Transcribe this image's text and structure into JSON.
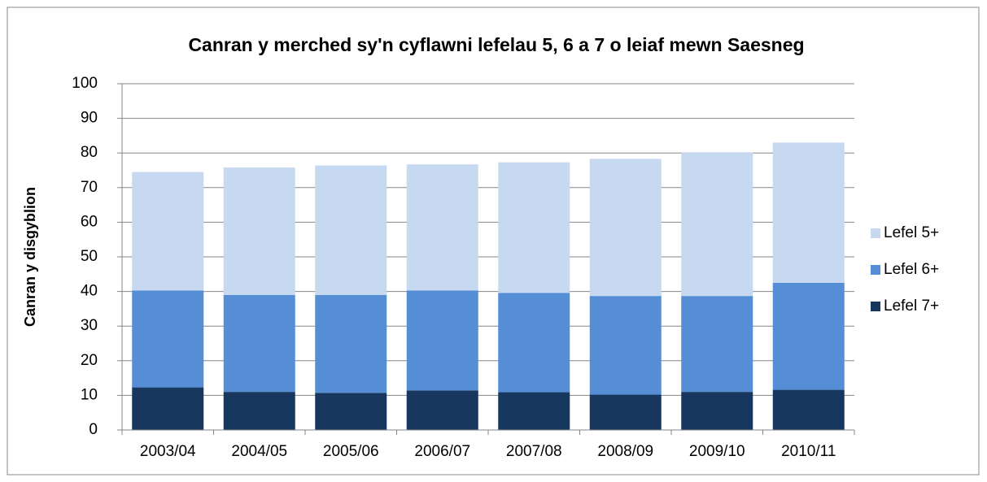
{
  "chart_data": {
    "type": "stacked_bar",
    "title": "Canran y merched sy'n cyflawni lefelau 5,  6 a 7 o leiaf mewn Saesneg",
    "ylabel": "Canran y disgyblion",
    "categories": [
      "2003/04",
      "2004/05",
      "2005/06",
      "2006/07",
      "2007/08",
      "2008/09",
      "2009/10",
      "2010/11"
    ],
    "series": [
      {
        "name": "Lefel 7+",
        "color": "#17375e",
        "values": [
          12.3,
          11.0,
          10.7,
          11.4,
          10.9,
          10.2,
          11.0,
          11.6
        ]
      },
      {
        "name": "Lefel 6+",
        "color": "#558ed5",
        "values": [
          28.0,
          28.0,
          28.3,
          28.9,
          28.7,
          28.5,
          27.7,
          30.9
        ]
      },
      {
        "name": "Lefel 5+",
        "color": "#c6d9f1",
        "values": [
          34.2,
          36.8,
          37.4,
          36.4,
          37.7,
          39.6,
          41.5,
          40.5
        ]
      }
    ],
    "ylim": [
      0,
      100
    ],
    "yticks": [
      0,
      10,
      20,
      30,
      40,
      50,
      60,
      70,
      80,
      90,
      100
    ],
    "grid": true,
    "legend": "right"
  }
}
